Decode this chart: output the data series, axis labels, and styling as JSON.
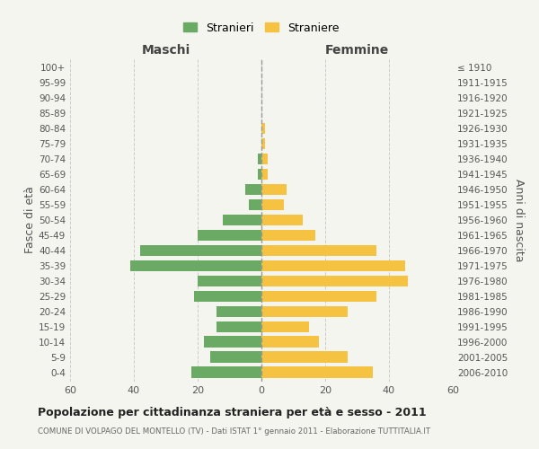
{
  "age_groups": [
    "0-4",
    "5-9",
    "10-14",
    "15-19",
    "20-24",
    "25-29",
    "30-34",
    "35-39",
    "40-44",
    "45-49",
    "50-54",
    "55-59",
    "60-64",
    "65-69",
    "70-74",
    "75-79",
    "80-84",
    "85-89",
    "90-94",
    "95-99",
    "100+"
  ],
  "birth_years": [
    "2006-2010",
    "2001-2005",
    "1996-2000",
    "1991-1995",
    "1986-1990",
    "1981-1985",
    "1976-1980",
    "1971-1975",
    "1966-1970",
    "1961-1965",
    "1956-1960",
    "1951-1955",
    "1946-1950",
    "1941-1945",
    "1936-1940",
    "1931-1935",
    "1926-1930",
    "1921-1925",
    "1916-1920",
    "1911-1915",
    "≤ 1910"
  ],
  "males": [
    22,
    16,
    18,
    14,
    14,
    21,
    20,
    41,
    38,
    20,
    12,
    4,
    5,
    1,
    1,
    0,
    0,
    0,
    0,
    0,
    0
  ],
  "females": [
    35,
    27,
    18,
    15,
    27,
    36,
    46,
    45,
    36,
    17,
    13,
    7,
    8,
    2,
    2,
    1,
    1,
    0,
    0,
    0,
    0
  ],
  "male_color": "#6aaa64",
  "female_color": "#f5c242",
  "background_color": "#f5f5f0",
  "grid_color": "#cccccc",
  "xlim": 60,
  "title": "Popolazione per cittadinanza straniera per età e sesso - 2011",
  "subtitle": "COMUNE DI VOLPAGO DEL MONTELLO (TV) - Dati ISTAT 1° gennaio 2011 - Elaborazione TUTTITALIA.IT",
  "left_label": "Maschi",
  "right_label": "Femmine",
  "left_axis_label": "Fasce di età",
  "right_axis_label": "Anni di nascita",
  "legend_male": "Stranieri",
  "legend_female": "Straniere"
}
